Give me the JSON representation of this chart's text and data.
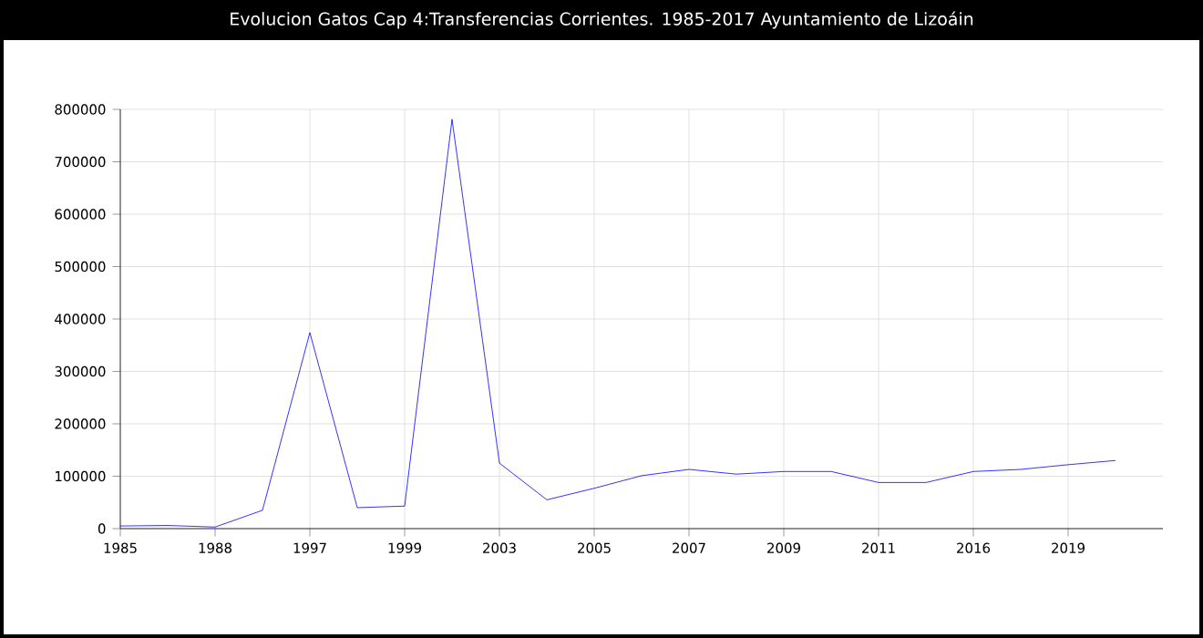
{
  "chart_data": {
    "type": "line",
    "title": "Evolucion Gatos Cap 4:Transferencias Corrientes. 1985-2017 Ayuntamiento de Lizoáin",
    "categories": [
      "1985",
      null,
      "1988",
      null,
      "1997",
      null,
      "1999",
      null,
      "2003",
      null,
      "2005",
      null,
      "2007",
      null,
      "2009",
      null,
      "2011",
      null,
      "2016",
      null,
      "2019",
      null,
      null
    ],
    "series": [
      {
        "color": "#0000ff",
        "values": [
          5000,
          6000,
          3000,
          35000,
          374000,
          40000,
          43000,
          781000,
          125000,
          55000,
          77000,
          101000,
          113000,
          104000,
          109000,
          109000,
          88000,
          88000,
          109000,
          113000,
          122000,
          130000,
          null
        ]
      }
    ],
    "ylim": [
      0,
      800000
    ],
    "yticks": [
      0,
      100000,
      200000,
      300000,
      400000,
      500000,
      600000,
      700000,
      800000
    ],
    "grid": true,
    "marker": "none",
    "line_style": "solid"
  }
}
